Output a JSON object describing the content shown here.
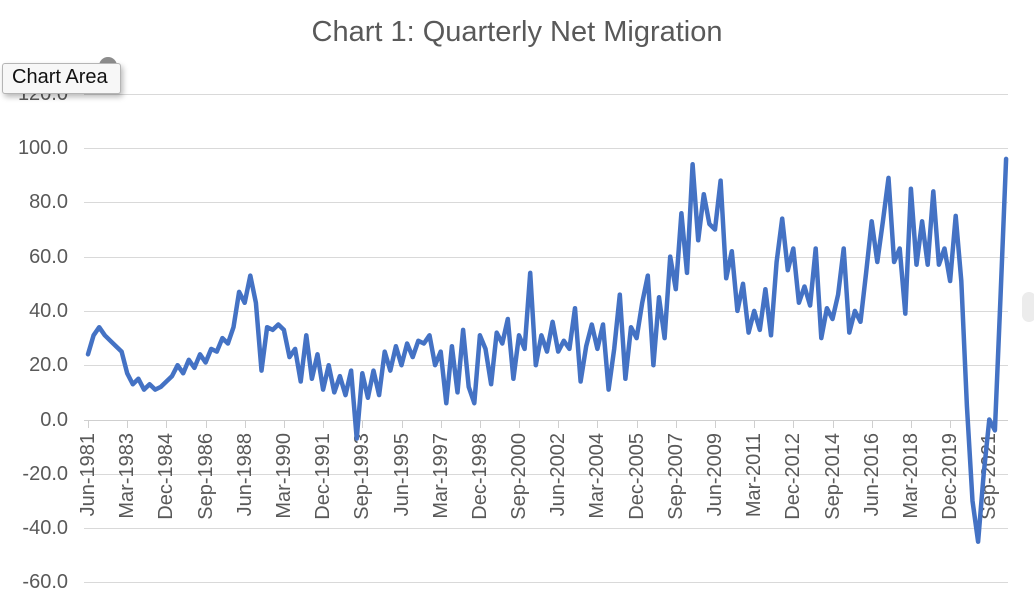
{
  "title": "Chart 1: Quarterly Net Migration",
  "tooltip": {
    "label": "Chart Area"
  },
  "colors": {
    "series": "#4472C4",
    "gridline": "#d9d9d9",
    "axis": "#cfcfcf",
    "text": "#595959",
    "tooltip_bg": "#f7f7f7",
    "tooltip_border": "#b5b5b5"
  },
  "y_axis": {
    "labels": [
      "120.0",
      "100.0",
      "80.0",
      "60.0",
      "40.0",
      "20.0",
      "0.0",
      "-20.0",
      "-40.0",
      "-60.0"
    ],
    "max": 120,
    "min": -60,
    "step": 20
  },
  "x_axis": {
    "labels": [
      "Jun-1981",
      "Mar-1983",
      "Dec-1984",
      "Sep-1986",
      "Jun-1988",
      "Mar-1990",
      "Dec-1991",
      "Sep-1993",
      "Jun-1995",
      "Mar-1997",
      "Dec-1998",
      "Sep-2000",
      "Jun-2002",
      "Mar-2004",
      "Dec-2005",
      "Sep-2007",
      "Jun-2009",
      "Mar-2011",
      "Dec-2012",
      "Sep-2014",
      "Jun-2016",
      "Mar-2018",
      "Dec-2019",
      "Sep-2021"
    ],
    "label_interval_quarters": 7
  },
  "chart_data": {
    "type": "line",
    "title": "Chart 1: Quarterly Net Migration",
    "frequency": "quarterly",
    "x_first_label": "Jun-1981",
    "x_last_label": "Sep-2021",
    "ylim": [
      -60,
      120
    ],
    "grid": "horizontal",
    "legend": "none",
    "series_color": "#4472C4",
    "values": [
      24,
      31,
      34,
      31,
      29,
      27,
      25,
      17,
      13,
      15,
      11,
      13,
      11,
      12,
      14,
      16,
      20,
      17,
      22,
      19,
      24,
      21,
      26,
      25,
      30,
      28,
      34,
      47,
      43,
      53,
      43,
      18,
      34,
      33,
      35,
      33,
      23,
      26,
      14,
      31,
      15,
      24,
      11,
      20,
      10,
      16,
      9,
      18,
      -7,
      17,
      8,
      18,
      9,
      25,
      18,
      27,
      20,
      28,
      23,
      29,
      28,
      31,
      20,
      25,
      6,
      27,
      10,
      33,
      12,
      6,
      31,
      26,
      13,
      32,
      28,
      37,
      15,
      31,
      26,
      54,
      20,
      31,
      25,
      36,
      25,
      29,
      26,
      41,
      14,
      27,
      35,
      26,
      35,
      11,
      26,
      46,
      15,
      34,
      30,
      43,
      53,
      20,
      45,
      30,
      60,
      48,
      76,
      54,
      94,
      66,
      83,
      72,
      70,
      88,
      52,
      62,
      40,
      50,
      32,
      40,
      33,
      48,
      31,
      58,
      74,
      55,
      63,
      43,
      49,
      42,
      63,
      30,
      41,
      37,
      46,
      63,
      32,
      40,
      36,
      54,
      73,
      58,
      73,
      89,
      58,
      63,
      39,
      85,
      57,
      73,
      57,
      84,
      57,
      63,
      51,
      75,
      51,
      5,
      -30,
      -45,
      -20,
      0,
      -4,
      45,
      96
    ]
  }
}
